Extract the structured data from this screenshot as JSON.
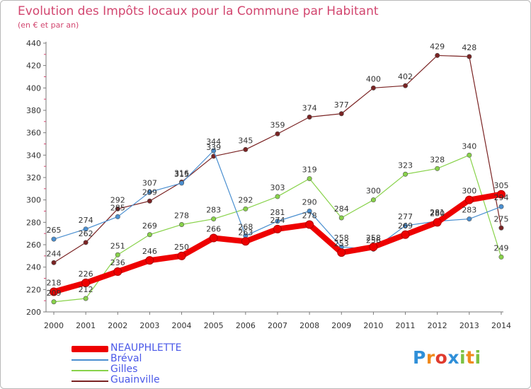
{
  "chart_data": {
    "type": "line",
    "title": "Evolution des Impôts locaux pour la Commune par Habitant",
    "subtitle": "(en € et par an)",
    "xlabel": "",
    "ylabel": "",
    "ylim": [
      200,
      440
    ],
    "yticks": [
      "200",
      "220",
      "240",
      "260",
      "280",
      "300",
      "320",
      "340",
      "360",
      "380",
      "400",
      "420",
      "440"
    ],
    "categories": [
      "2000",
      "2001",
      "2002",
      "2003",
      "2004",
      "2005",
      "2006",
      "2007",
      "2008",
      "2009",
      "2010",
      "2011",
      "2012",
      "2013",
      "2014"
    ],
    "series": [
      {
        "name": "NEAUPHLETTE",
        "color": "#ee0000",
        "values": [
          218,
          226,
          236,
          246,
          250,
          266,
          263,
          274,
          278,
          253,
          258,
          269,
          280,
          300,
          305
        ],
        "labels": [
          "218",
          "226",
          "236",
          "246",
          "250",
          "266",
          "263",
          "274",
          "278",
          "253",
          "258",
          "269",
          "280",
          "300",
          "305"
        ]
      },
      {
        "name": "Bréval",
        "color": "#4a8fd0",
        "values": [
          265,
          274,
          285,
          307,
          315,
          344,
          268,
          281,
          290,
          258,
          256,
          277,
          281,
          283,
          294
        ],
        "labels": [
          "265",
          "274",
          "285",
          "307",
          "315",
          "344",
          "268",
          "281",
          "290",
          "258",
          "256",
          "277",
          "281",
          "283",
          "294"
        ]
      },
      {
        "name": "Gilles",
        "color": "#88d24a",
        "values": [
          209,
          212,
          251,
          269,
          278,
          283,
          292,
          303,
          319,
          284,
          300,
          323,
          328,
          340,
          249
        ],
        "labels": [
          "209",
          "212",
          "251",
          "269",
          "278",
          "283",
          "292",
          "303",
          "319",
          "284",
          "300",
          "323",
          "328",
          "340",
          "249"
        ]
      },
      {
        "name": "Guainville",
        "color": "#7a2323",
        "values": [
          244,
          262,
          292,
          299,
          316,
          339,
          345,
          359,
          374,
          377,
          400,
          402,
          429,
          428,
          275
        ],
        "labels": [
          "244",
          "262",
          "292",
          "299",
          "316",
          "339",
          "345",
          "359",
          "374",
          "377",
          "400",
          "402",
          "429",
          "428",
          "275"
        ]
      }
    ],
    "legend_position": "bottom-left",
    "grid": false
  },
  "brand": {
    "name": "Proxiti",
    "letters": [
      "P",
      "r",
      "o",
      "x",
      "i",
      "t",
      "i"
    ]
  }
}
